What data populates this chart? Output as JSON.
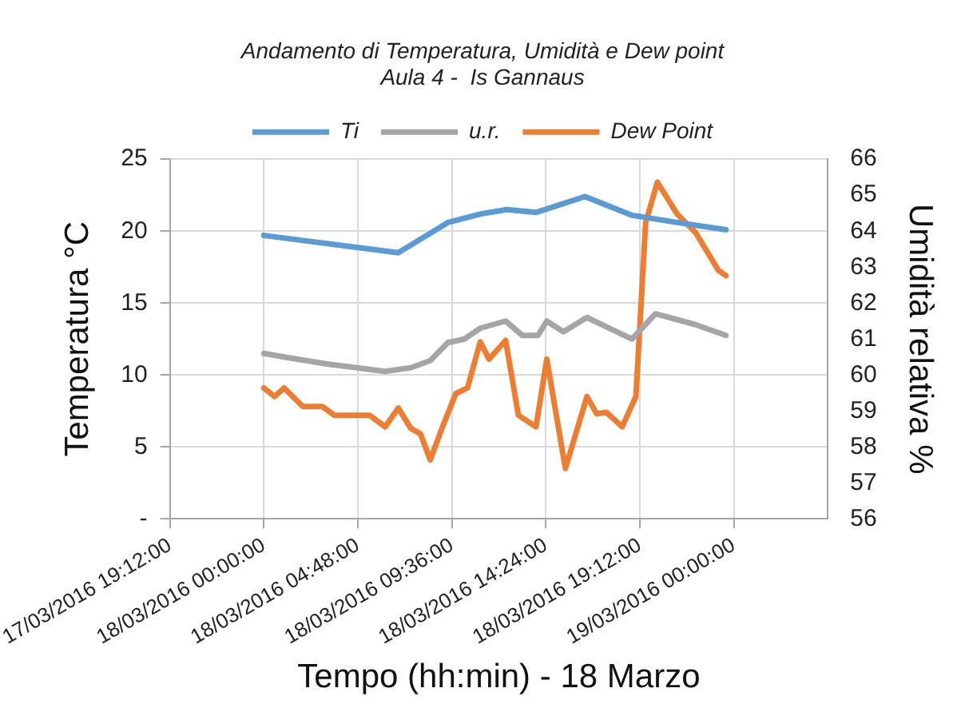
{
  "chart_data": {
    "type": "line",
    "title": "Andamento di Temperatura, Umidità e Dew point",
    "subtitle": "Aula 4 -  Is Gannaus",
    "xlabel": "Tempo (hh:min) - 18 Marzo",
    "ylabel": "Temperatura °C",
    "y2label": "Umidità relativa %",
    "xlim": [
      "2016-03-17T19:12",
      "2016-03-19T04:48"
    ],
    "xticks": [
      {
        "value": "2016-03-17T19:12",
        "label": "17/03/2016 19:12:00"
      },
      {
        "value": "2016-03-18T00:00",
        "label": "18/03/2016 00:00:00"
      },
      {
        "value": "2016-03-18T04:48",
        "label": "18/03/2016 04:48:00"
      },
      {
        "value": "2016-03-18T09:36",
        "label": "18/03/2016 09:36:00"
      },
      {
        "value": "2016-03-18T14:24",
        "label": "18/03/2016 14:24:00"
      },
      {
        "value": "2016-03-18T19:12",
        "label": "18/03/2016 19:12:00"
      },
      {
        "value": "2016-03-19T00:00",
        "label": "19/03/2016 00:00:00"
      }
    ],
    "ylim": [
      0,
      25
    ],
    "yticks": [
      {
        "value": 0,
        "label": "-"
      },
      5,
      10,
      15,
      20,
      25
    ],
    "y2lim": [
      56,
      66
    ],
    "y2ticks": [
      56,
      57,
      58,
      59,
      60,
      61,
      62,
      63,
      64,
      65,
      66
    ],
    "grid": true,
    "legend": "top",
    "marker": "none",
    "line_style": "solid",
    "series": [
      {
        "name": "Ti",
        "color": "#5b9bd5",
        "x": [
          "2016-03-18T00:00",
          "2016-03-18T06:52",
          "2016-03-18T09:24",
          "2016-03-18T11:06",
          "2016-03-18T12:24",
          "2016-03-18T13:54",
          "2016-03-18T16:24",
          "2016-03-18T18:48",
          "2016-03-18T21:06",
          "2016-03-18T23:36"
        ],
        "values": [
          19.7,
          18.5,
          20.6,
          21.2,
          21.5,
          21.3,
          22.4,
          21.1,
          20.6,
          20.1
        ]
      },
      {
        "name": "u.r.",
        "color": "#a5a5a5",
        "axis": "y2",
        "x": [
          "2016-03-18T00:00",
          "2016-03-18T01:02",
          "2016-03-18T03:18",
          "2016-03-18T06:12",
          "2016-03-18T07:30",
          "2016-03-18T08:30",
          "2016-03-18T09:24",
          "2016-03-18T10:15",
          "2016-03-18T11:03",
          "2016-03-18T12:21",
          "2016-03-18T13:12",
          "2016-03-18T14:00",
          "2016-03-18T14:27",
          "2016-03-18T15:18",
          "2016-03-18T16:30",
          "2016-03-18T18:48",
          "2016-03-18T20:00",
          "2016-03-18T22:03",
          "2016-03-18T23:36"
        ],
        "values": [
          60.6,
          60.5,
          60.3,
          60.1,
          60.2,
          60.4,
          60.9,
          61.0,
          61.3,
          61.5,
          61.1,
          61.1,
          61.5,
          61.2,
          61.6,
          61.0,
          61.7,
          61.4,
          61.1
        ]
      },
      {
        "name": "Dew Point",
        "color": "#ed7d31",
        "x": [
          "2016-03-18T00:00",
          "2016-03-18T00:33",
          "2016-03-18T01:02",
          "2016-03-18T02:00",
          "2016-03-18T03:00",
          "2016-03-18T03:36",
          "2016-03-18T05:24",
          "2016-03-18T06:12",
          "2016-03-18T06:52",
          "2016-03-18T07:30",
          "2016-03-18T08:00",
          "2016-03-18T08:30",
          "2016-03-18T09:06",
          "2016-03-18T09:48",
          "2016-03-18T10:24",
          "2016-03-18T11:03",
          "2016-03-18T11:30",
          "2016-03-18T12:21",
          "2016-03-18T13:00",
          "2016-03-18T13:54",
          "2016-03-18T14:27",
          "2016-03-18T15:24",
          "2016-03-18T16:30",
          "2016-03-18T17:00",
          "2016-03-18T17:30",
          "2016-03-18T18:18",
          "2016-03-18T19:00",
          "2016-03-18T19:30",
          "2016-03-18T20:06",
          "2016-03-18T21:06",
          "2016-03-18T22:03",
          "2016-03-18T23:12",
          "2016-03-18T23:36"
        ],
        "values": [
          9.1,
          8.5,
          9.1,
          7.8,
          7.8,
          7.2,
          7.2,
          6.4,
          7.7,
          6.3,
          5.9,
          4.1,
          6.3,
          8.7,
          9.1,
          12.3,
          11.1,
          12.4,
          7.2,
          6.4,
          11.1,
          3.5,
          8.5,
          7.3,
          7.4,
          6.4,
          8.5,
          20.6,
          23.4,
          21.2,
          19.9,
          17.3,
          16.9
        ]
      }
    ]
  }
}
